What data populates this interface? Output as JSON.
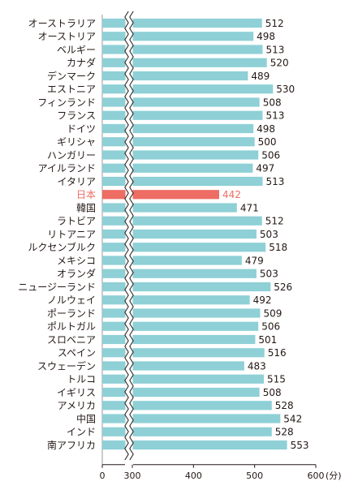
{
  "chart_data": {
    "type": "bar",
    "orientation": "horizontal",
    "axis_break": true,
    "xlim": [
      0,
      600
    ],
    "x_ticks": [
      "0",
      "300",
      "400",
      "500",
      "600"
    ],
    "x_unit": "(分)",
    "categories": [
      "オーストラリア",
      "オーストリア",
      "ベルギー",
      "カナダ",
      "デンマーク",
      "エストニア",
      "フィンランド",
      "フランス",
      "ドイツ",
      "ギリシャ",
      "ハンガリー",
      "アイルランド",
      "イタリア",
      "日本",
      "韓国",
      "ラトビア",
      "リトアニア",
      "ルクセンブルク",
      "メキシコ",
      "オランダ",
      "ニュージーランド",
      "ノルウェイ",
      "ポーランド",
      "ポルトガル",
      "スロベニア",
      "スペイン",
      "スウェーデン",
      "トルコ",
      "イギリス",
      "アメリカ",
      "中国",
      "インド",
      "南アフリカ"
    ],
    "values": [
      512,
      498,
      513,
      520,
      489,
      530,
      508,
      513,
      498,
      500,
      506,
      497,
      513,
      442,
      471,
      512,
      503,
      518,
      479,
      503,
      526,
      492,
      509,
      506,
      501,
      516,
      483,
      515,
      508,
      528,
      542,
      528,
      553
    ],
    "highlight": "日本",
    "colors": {
      "bar": "#8ed0d6",
      "highlight": "#ed6c63",
      "text": "#231815"
    }
  }
}
